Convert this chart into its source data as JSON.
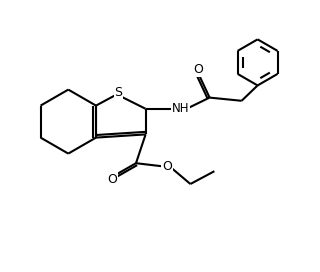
{
  "bg_color": "#ffffff",
  "line_color": "#000000",
  "lw": 1.5,
  "fig_width": 3.2,
  "fig_height": 2.72,
  "dpi": 100,
  "xlim": [
    0,
    10
  ],
  "ylim": [
    0,
    8.5
  ]
}
